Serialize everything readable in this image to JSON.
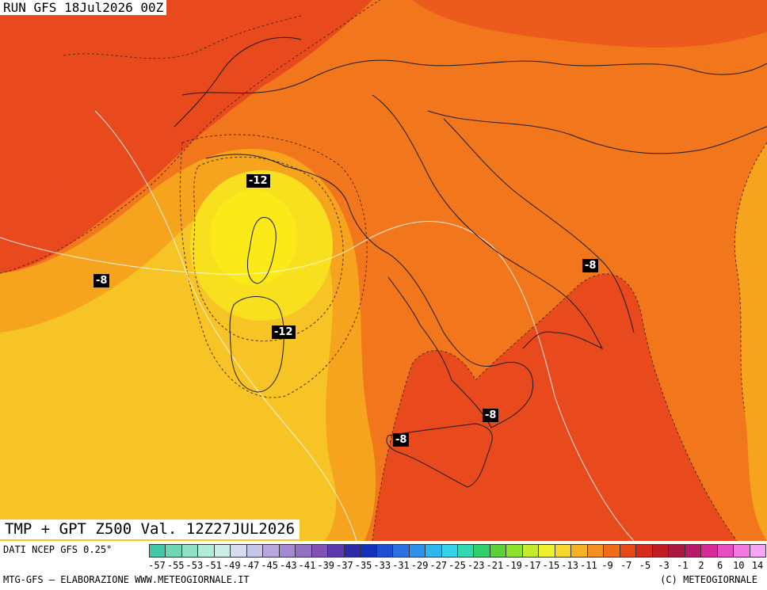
{
  "run_label": "RUN GFS 18Jul2026 00Z",
  "map_title": "TMP + GPT Z500 Val. 12Z27JUL2026",
  "source_note": "DATI NCEP GFS 0.25°",
  "credit_left": "MTG-GFS — ELABORAZIONE WWW.METEOGIORNALE.IT",
  "credit_right": "(C) METEOGIORNALE",
  "isotherm_labels": [
    "-12",
    "-8",
    "-12",
    "-8",
    "-8",
    "-8"
  ],
  "legend": {
    "ticks": [
      "-57",
      "-55",
      "-53",
      "-51",
      "-49",
      "-47",
      "-45",
      "-43",
      "-41",
      "-39",
      "-37",
      "-35",
      "-33",
      "-31",
      "-29",
      "-27",
      "-25",
      "-23",
      "-21",
      "-19",
      "-17",
      "-15",
      "-13",
      "-11",
      "-9",
      "-7",
      "-5",
      "-3",
      "-1",
      "2",
      "6",
      "10",
      "14"
    ],
    "colors": [
      "#43c7a4",
      "#6ed6b4",
      "#8fe1c6",
      "#b0ecd8",
      "#cdeee6",
      "#d6dcee",
      "#c8c6e8",
      "#b6a8dc",
      "#a48ad0",
      "#9370c4",
      "#7f52b8",
      "#5b3aae",
      "#2c2aa6",
      "#1530b8",
      "#1f4fd0",
      "#2a70e0",
      "#2f93ec",
      "#2fb6f0",
      "#36d2e8",
      "#33d8b0",
      "#2fd06c",
      "#5cd238",
      "#8ee02e",
      "#c4ea2a",
      "#eef22c",
      "#f6d62a",
      "#f6b222",
      "#f28f1e",
      "#ee6c1a",
      "#e84818",
      "#d82a1a",
      "#c01c28",
      "#a81840",
      "#b81a6a",
      "#d62a96",
      "#e84cc0",
      "#f07ae0",
      "#f6a6f0"
    ]
  },
  "colors": {
    "red": "#e84a1e",
    "orange": "#f2761c",
    "amber": "#f6a41e",
    "yellow": "#f6c424",
    "bright_yellow": "#f8e01e"
  }
}
